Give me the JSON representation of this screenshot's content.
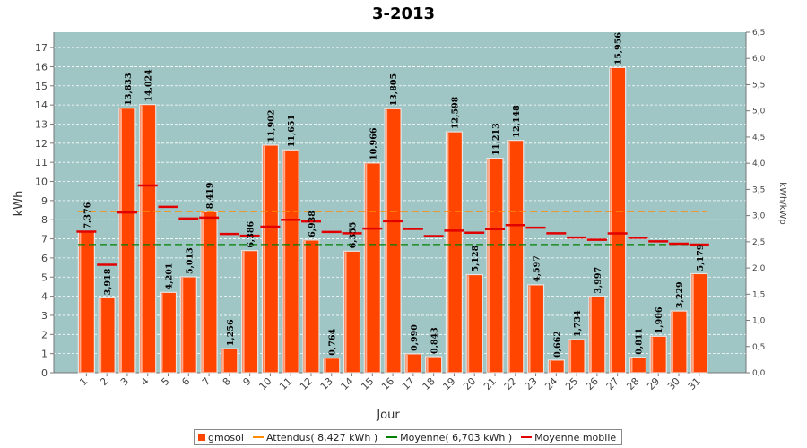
{
  "chart_data": {
    "type": "bar",
    "title": "3-2013",
    "xlabel": "Jour",
    "ylabel": "kWh",
    "ylabel_right": "kWh/kWp",
    "ylim": [
      0,
      17.8
    ],
    "ylim_right": [
      0,
      6.5
    ],
    "yticks": [
      "0",
      "1",
      "2",
      "3",
      "4",
      "5",
      "6",
      "7",
      "8",
      "9",
      "10",
      "11",
      "12",
      "13",
      "14",
      "15",
      "16",
      "17"
    ],
    "yticks_right": [
      "0,0",
      "0,5",
      "1,0",
      "1,5",
      "2,0",
      "2,5",
      "3,0",
      "3,5",
      "4,0",
      "4,5",
      "5,0",
      "5,5",
      "6,0",
      "6,5"
    ],
    "categories": [
      "1",
      "2",
      "3",
      "4",
      "5",
      "6",
      "7",
      "8",
      "9",
      "10",
      "11",
      "12",
      "13",
      "14",
      "15",
      "16",
      "17",
      "18",
      "19",
      "20",
      "21",
      "22",
      "23",
      "24",
      "25",
      "26",
      "27",
      "28",
      "29",
      "30",
      "31"
    ],
    "series": [
      {
        "name": "gmosol",
        "color": "#ff4500",
        "values": [
          7.376,
          3.918,
          13.833,
          14.024,
          4.201,
          5.013,
          8.419,
          1.256,
          6.386,
          11.902,
          11.651,
          6.938,
          0.764,
          6.355,
          10.966,
          13.805,
          0.99,
          0.843,
          12.598,
          5.128,
          11.213,
          12.148,
          4.597,
          0.662,
          1.734,
          3.997,
          15.956,
          0.811,
          1.906,
          3.229,
          5.179
        ],
        "labels": [
          "7,376",
          "3,918",
          "13,833",
          "14,024",
          "4,201",
          "5,013",
          "8,419",
          "1,256",
          "6,386",
          "11,902",
          "11,651",
          "6,938",
          "0,764",
          "6,355",
          "10,966",
          "13,805",
          "0,990",
          "0,843",
          "12,598",
          "5,128",
          "11,213",
          "12,148",
          "4,597",
          "0,662",
          "1,734",
          "3,997",
          "15,956",
          "0,811",
          "1,906",
          "3,229",
          "5,179"
        ]
      },
      {
        "name": "Moyenne mobile",
        "color": "#e00000",
        "values": [
          7.376,
          5.647,
          8.376,
          9.788,
          8.671,
          8.061,
          8.112,
          7.255,
          7.159,
          7.633,
          8.0,
          7.911,
          7.361,
          7.289,
          7.534,
          7.925,
          7.517,
          7.146,
          7.433,
          7.318,
          7.504,
          7.715,
          7.58,
          7.292,
          7.07,
          6.952,
          7.286,
          7.055,
          6.869,
          6.748,
          6.697
        ]
      }
    ],
    "reference_lines": [
      {
        "name": "Attendus( 8,427 kWh )",
        "value": 8.427,
        "color": "#ff8c00"
      },
      {
        "name": "Moyenne( 6,703 kWh )",
        "value": 6.703,
        "color": "#008000"
      }
    ],
    "plot_background": "#9fc5c5",
    "grid": true,
    "legend_position": "bottom"
  },
  "legend": {
    "items": [
      {
        "label": "gmosol"
      },
      {
        "label": "Attendus( 8,427 kWh )"
      },
      {
        "label": "Moyenne( 6,703 kWh )"
      },
      {
        "label": "Moyenne mobile"
      }
    ]
  }
}
